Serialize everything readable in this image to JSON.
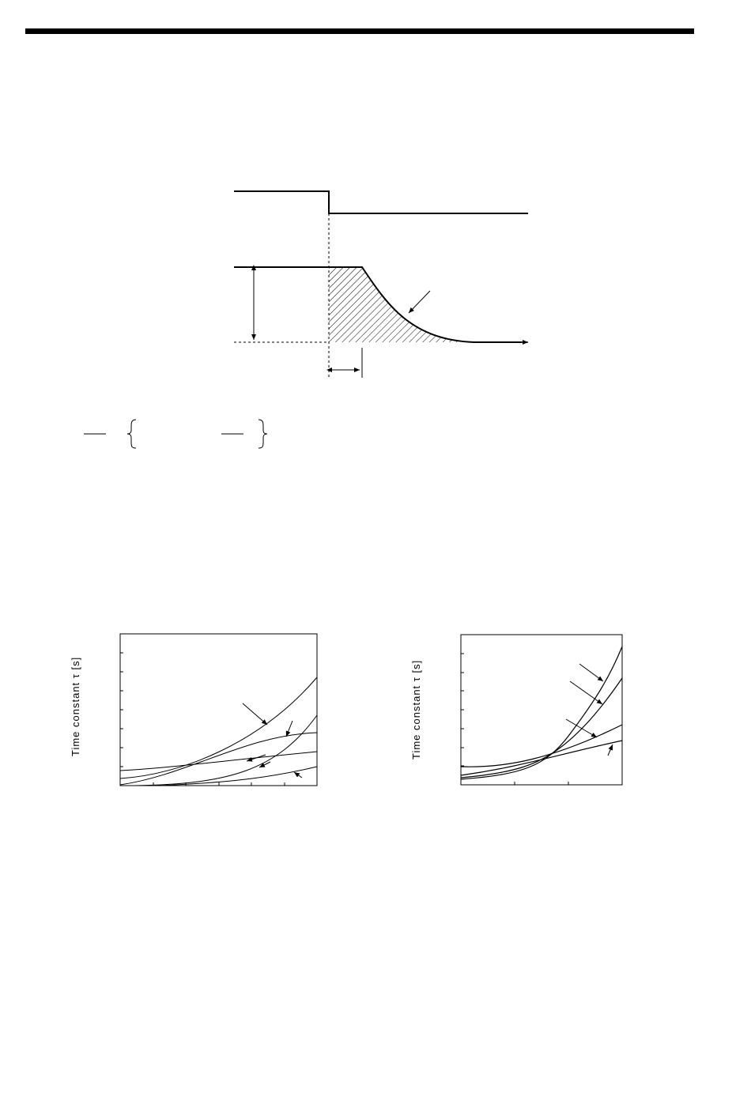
{
  "page": {
    "accent_color": "#000000"
  },
  "graphs": [
    {
      "ylabel": "Time constant τ [s]"
    },
    {
      "ylabel": "Time constant τ [s]"
    }
  ]
}
